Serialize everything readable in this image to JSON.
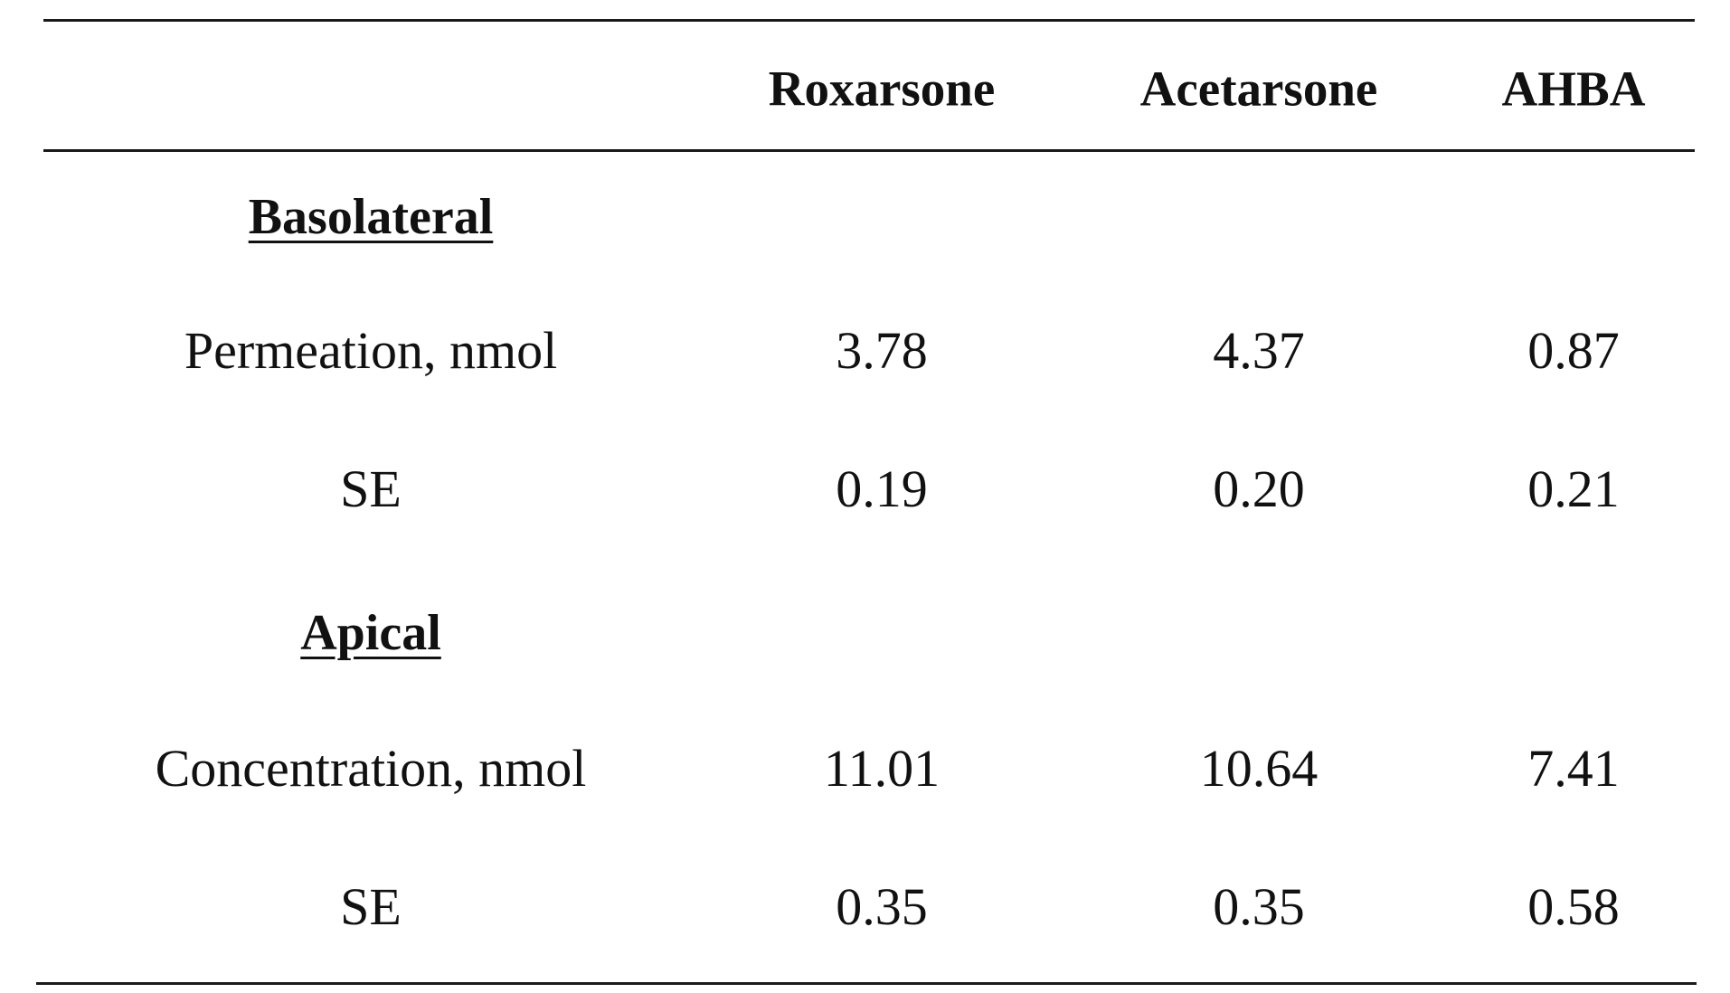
{
  "table": {
    "columns": [
      "",
      "Roxarsone",
      "Acetarsone",
      "AHBA"
    ],
    "sections": [
      {
        "title": "Basolateral",
        "rows": [
          {
            "label": "Permeation, nmol",
            "values": [
              "3.78",
              "4.37",
              "0.87"
            ]
          },
          {
            "label": "SE",
            "values": [
              "0.19",
              "0.20",
              "0.21"
            ]
          }
        ]
      },
      {
        "title": "Apical",
        "rows": [
          {
            "label": "Concentration, nmol",
            "values": [
              "11.01",
              "10.64",
              "7.41"
            ]
          },
          {
            "label": "SE",
            "values": [
              "0.35",
              "0.35",
              "0.58"
            ]
          }
        ]
      }
    ]
  }
}
